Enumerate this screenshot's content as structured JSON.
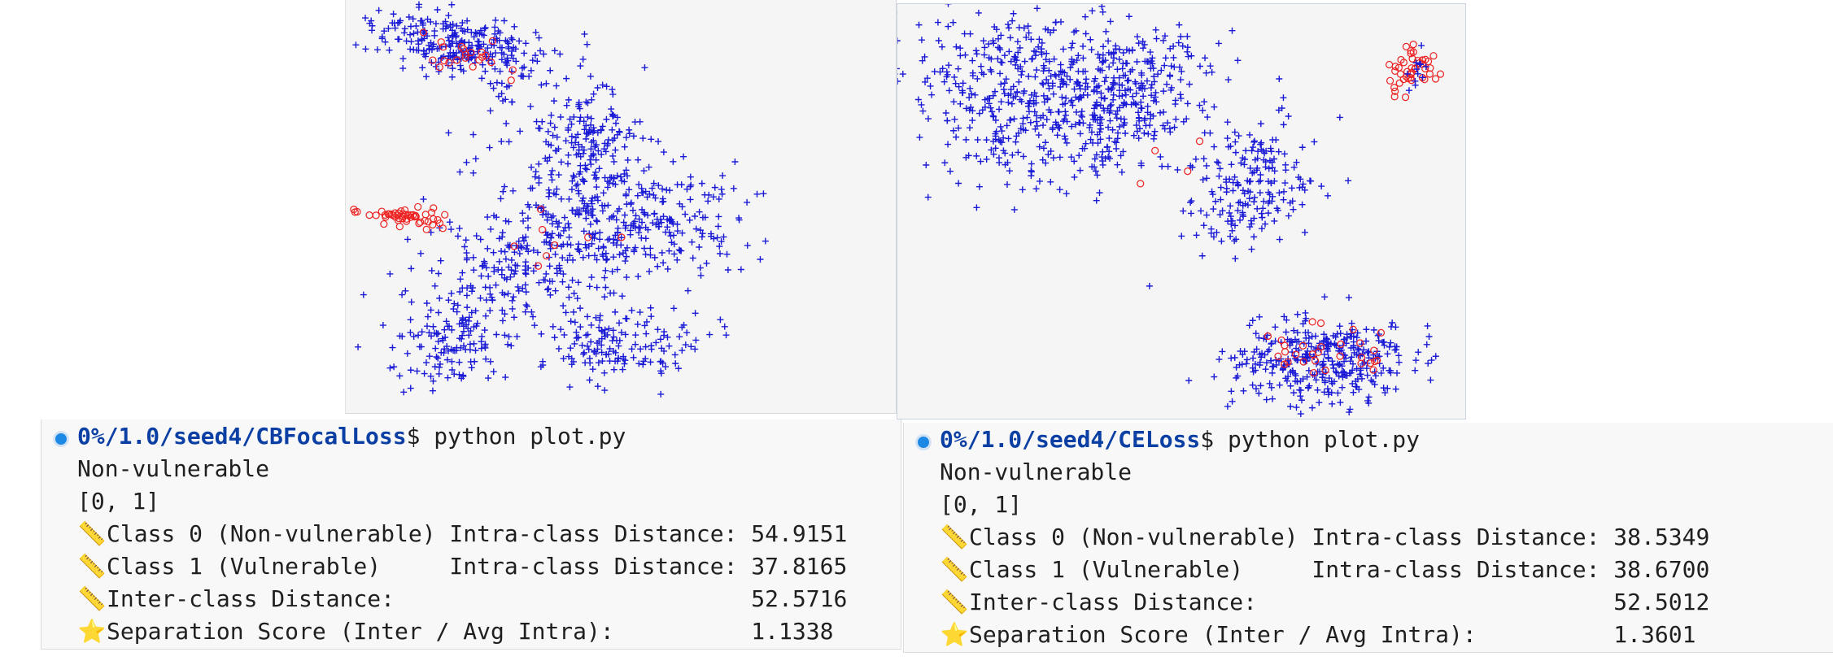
{
  "panels": [
    {
      "id": "left",
      "prompt_path": "0%/1.0/seed4/CBFocalLoss",
      "prompt_symbol": "$",
      "command": " python plot.py",
      "output_line1": "Non-vulnerable",
      "output_line2": "[0, 1]",
      "stats": [
        {
          "icon": "ruler-icon",
          "text": "Class 0 (Non-vulnerable) Intra-class Distance: 54.9151"
        },
        {
          "icon": "ruler-icon",
          "text": "Class 1 (Vulnerable)     Intra-class Distance: 37.8165"
        },
        {
          "icon": "ruler-icon",
          "text": "Inter-class Distance:                          52.5716"
        },
        {
          "icon": "star-icon",
          "text": "Separation Score (Inter / Avg Intra):          1.1338"
        }
      ]
    },
    {
      "id": "right",
      "prompt_path": "0%/1.0/seed4/CELoss",
      "prompt_symbol": "$",
      "command": " python plot.py",
      "output_line1": "Non-vulnerable",
      "output_line2": "[0, 1]",
      "stats": [
        {
          "icon": "ruler-icon",
          "text": "Class 0 (Non-vulnerable) Intra-class Distance: 38.5349"
        },
        {
          "icon": "ruler-icon",
          "text": "Class 1 (Vulnerable)     Intra-class Distance: 38.6700"
        },
        {
          "icon": "ruler-icon",
          "text": "Inter-class Distance:                          52.5012"
        },
        {
          "icon": "star-icon",
          "text": "Separation Score (Inter / Avg Intra):          1.3601"
        }
      ]
    }
  ],
  "colors": {
    "class0_marker": "#1a1ad6",
    "class1_marker": "#ee2020",
    "prompt_path": "#0b3fa3",
    "status_dot": "#1e88e5"
  },
  "chart_data": [
    {
      "type": "scatter",
      "series": [
        {
          "marker": "plus",
          "color": "#1a1ad6"
        },
        {
          "marker": "circle",
          "color": "#ee2020"
        }
      ]
    },
    {
      "type": "scatter",
      "series": [
        {
          "marker": "plus",
          "color": "#1a1ad6"
        },
        {
          "marker": "circle",
          "color": "#ee2020"
        }
      ]
    }
  ]
}
